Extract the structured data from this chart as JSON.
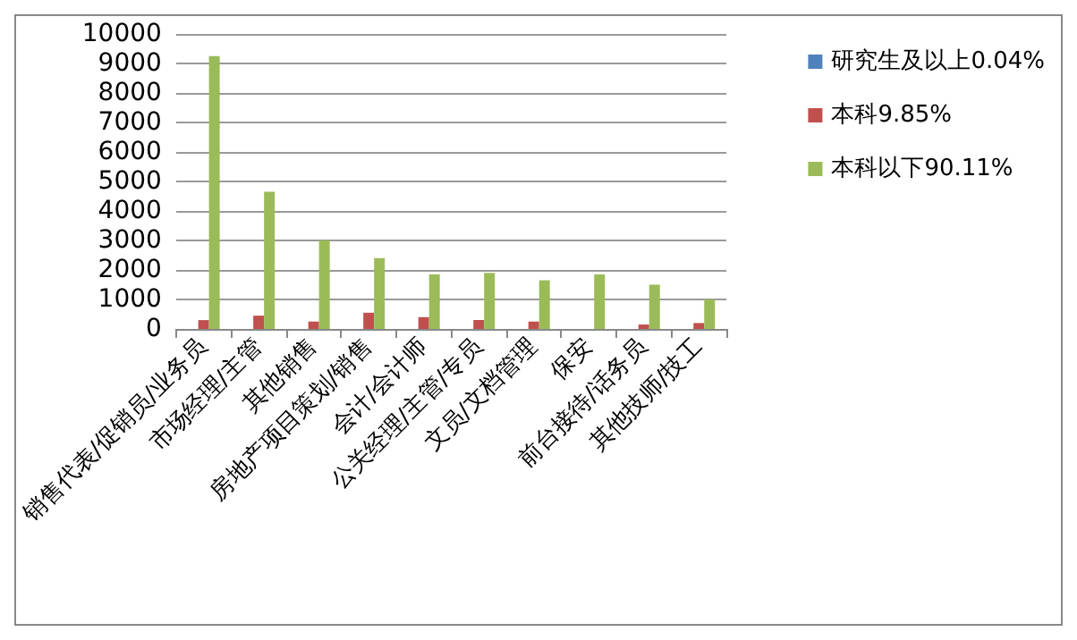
{
  "chart_data": {
    "type": "bar",
    "categories": [
      "销售代表/促销员/业务员",
      "市场经理/主管",
      "其他销售",
      "房地产项目策划/销售",
      "会计/会计师",
      "公关经理/主管/专员",
      "文员/文档管理",
      "保安",
      "前台接待/话务员",
      "其他技师/技工"
    ],
    "series": [
      {
        "name": "研究生及以上0.04%",
        "color": "#4f81bd",
        "values": [
          0,
          0,
          0,
          0,
          0,
          0,
          0,
          0,
          0,
          0
        ]
      },
      {
        "name": "本科9.85%",
        "color": "#c0504d",
        "values": [
          300,
          450,
          250,
          550,
          400,
          300,
          250,
          0,
          150,
          200
        ]
      },
      {
        "name": "本科以下90.11%",
        "color": "#9bbb59",
        "values": [
          9250,
          4650,
          3000,
          2400,
          1850,
          1900,
          1650,
          1850,
          1500,
          1000
        ]
      }
    ],
    "ylim": [
      0,
      10000
    ],
    "yticks": [
      0,
      1000,
      2000,
      3000,
      4000,
      5000,
      6000,
      7000,
      8000,
      9000,
      10000
    ],
    "grid": "y",
    "legend": "right"
  }
}
